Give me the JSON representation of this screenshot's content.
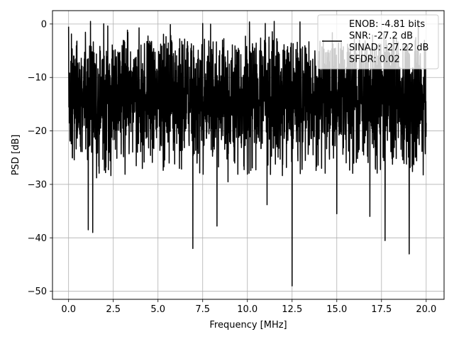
{
  "chart_data": {
    "type": "line",
    "xlabel": "Frequency [MHz]",
    "ylabel": "PSD [dB]",
    "xlim": [
      -0.9,
      21.0
    ],
    "ylim": [
      -51.5,
      2.5
    ],
    "x_ticks": [
      0.0,
      2.5,
      5.0,
      7.5,
      10.0,
      12.5,
      15.0,
      17.5,
      20.0
    ],
    "x_tick_labels": [
      "0.0",
      "2.5",
      "5.0",
      "7.5",
      "10.0",
      "12.5",
      "15.0",
      "17.5",
      "20.0"
    ],
    "y_ticks": [
      0,
      -10,
      -20,
      -30,
      -40,
      -50
    ],
    "y_tick_labels": [
      "0",
      "−10",
      "−20",
      "−30",
      "−40",
      "−50"
    ],
    "grid": true,
    "legend": {
      "placement": "top-right",
      "entries": [
        "ENOB: -4.81 bits",
        "SNR: -27.2 dB",
        "SINAD: -27.22 dB",
        "SFDR: 0.02"
      ]
    },
    "series": [
      {
        "color": "#000000",
        "x_range": [
          0.0,
          20.0
        ],
        "band_top": -8.0,
        "band_bottom": -19.5,
        "peak_values": [
          {
            "x": 0.0,
            "y": -0.5
          },
          {
            "x": 7.5,
            "y": 0.1
          },
          {
            "x": 8.3,
            "y": 0.1
          },
          {
            "x": 11.0,
            "y": 0.1
          },
          {
            "x": 11.5,
            "y": 0.5
          }
        ],
        "dip_values": [
          {
            "x": 1.1,
            "y": -38.5
          },
          {
            "x": 1.35,
            "y": -39.0
          },
          {
            "x": 6.95,
            "y": -42.0
          },
          {
            "x": 8.3,
            "y": -37.8
          },
          {
            "x": 11.1,
            "y": -33.8
          },
          {
            "x": 12.5,
            "y": -49.0
          },
          {
            "x": 15.0,
            "y": -35.5
          },
          {
            "x": 16.85,
            "y": -36.0
          },
          {
            "x": 17.7,
            "y": -40.5
          },
          {
            "x": 19.05,
            "y": -43.0
          }
        ]
      }
    ]
  }
}
